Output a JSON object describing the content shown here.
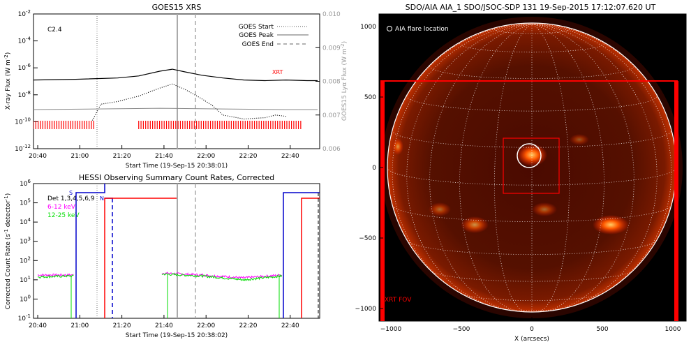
{
  "goes": {
    "title": "GOES15 XRS",
    "ylabel_left": "X-ray Flux (W m",
    "ylabel_left_sup": "-2",
    "ylabel_left_end": ")",
    "ylabel_right": "GOES15 Lyα Flux (W m",
    "ylabel_right_sup": "-2",
    "ylabel_right_end": ")",
    "xlabel": "Start Time (19-Sep-15 20:38:01)",
    "class_label": "C2.4",
    "xrt_label": "XRT",
    "legend": [
      {
        "label": "GOES Start",
        "style": "dotted"
      },
      {
        "label": "GOES Peak",
        "style": "solid"
      },
      {
        "label": "GOES End",
        "style": "dashed"
      }
    ],
    "left_ticks": [
      {
        "base": "10",
        "exp": "-2",
        "v": -2
      },
      {
        "base": "10",
        "exp": "-4",
        "v": -4
      },
      {
        "base": "10",
        "exp": "-6",
        "v": -6
      },
      {
        "base": "10",
        "exp": "-8",
        "v": -8
      },
      {
        "base": "10",
        "exp": "-10",
        "v": -10
      },
      {
        "base": "10",
        "exp": "-12",
        "v": -12
      }
    ],
    "right_ticks": [
      "0.010",
      "0.009",
      "0.008",
      "0.007",
      "0.006"
    ],
    "x_ticks": [
      "20:40",
      "21:00",
      "21:20",
      "21:40",
      "22:00",
      "22:20",
      "22:40"
    ]
  },
  "hessi": {
    "title": "HESSI Observing Summary Count Rates, Corrected",
    "ylabel": "Corrected Count Rate (s",
    "ylabel_sup": "-1",
    "ylabel_mid": " detector",
    "ylabel_sup2": "-1",
    "ylabel_end": ")",
    "xlabel": "Start Time (19-Sep-15 20:38:02)",
    "legend_det": "Det 1,3,4,5,6,9",
    "legend_6_12": "6-12 keV",
    "legend_12_25": "12-25 keV",
    "s_label": "S",
    "n_label": "N",
    "y_ticks": [
      {
        "base": "10",
        "exp": "6",
        "v": 6
      },
      {
        "base": "10",
        "exp": "5",
        "v": 5
      },
      {
        "base": "10",
        "exp": "4",
        "v": 4
      },
      {
        "base": "10",
        "exp": "3",
        "v": 3
      },
      {
        "base": "10",
        "exp": "2",
        "v": 2
      },
      {
        "base": "10",
        "exp": "1",
        "v": 1
      },
      {
        "base": "10",
        "exp": "0",
        "v": 0
      },
      {
        "base": "10",
        "exp": "-1",
        "v": -1
      }
    ],
    "x_ticks": [
      "20:40",
      "21:00",
      "21:20",
      "21:40",
      "22:00",
      "22:20",
      "22:40"
    ]
  },
  "aia": {
    "title": "SDO/AIA AIA_1 SDO/JSOC-SDP 131 19-Sep-2015 17:12:07.620 UT",
    "flare_legend": "AIA flare location",
    "xrt_fov": "XRT FOV",
    "xlabel": "X (arcsecs)",
    "x_ticks": [
      "−1000",
      "−500",
      "0",
      "500",
      "1000"
    ],
    "y_ticks": [
      "1000",
      "500",
      "0",
      "−500",
      "−1000"
    ]
  },
  "colors": {
    "goes_long": "#000000",
    "goes_short": "#000000",
    "lya": "#888888",
    "xrt_marks": "#ff0000",
    "det_blue": "#0000cc",
    "red": "#ff0000",
    "magenta": "#ff00ff",
    "green": "#00dd00",
    "grey_line": "#999999"
  },
  "chart_data": [
    {
      "type": "line",
      "title": "GOES15 XRS",
      "xlabel": "Start Time (19-Sep-15 20:38:01)",
      "ylabel": "X-ray Flux (W m-2)",
      "x_unit": "minutes after 20:38",
      "ylog": true,
      "ylim": [
        1e-12,
        0.01
      ],
      "y2lim": [
        0.006,
        0.01
      ],
      "series": [
        {
          "name": "GOES long",
          "x": [
            0,
            20,
            40,
            50,
            60,
            66,
            72,
            80,
            90,
            100,
            110,
            120,
            130,
            135
          ],
          "log_y": [
            -6.9,
            -6.85,
            -6.75,
            -6.6,
            -6.25,
            -6.1,
            -6.3,
            -6.55,
            -6.75,
            -6.9,
            -6.95,
            -6.9,
            -6.95,
            -6.95
          ]
        },
        {
          "name": "GOES short",
          "x": [
            28,
            32,
            40,
            50,
            60,
            66,
            72,
            80,
            85,
            90,
            100,
            110,
            115,
            120
          ],
          "log_y": [
            -9.9,
            -8.7,
            -8.5,
            -8.1,
            -7.5,
            -7.2,
            -7.6,
            -8.3,
            -8.8,
            -9.5,
            -9.8,
            -9.7,
            -9.5,
            -9.6
          ]
        },
        {
          "name": "Lya",
          "x": [
            0,
            30,
            60,
            90,
            120,
            135
          ],
          "log_y": [
            -9.1,
            -9.05,
            -9.0,
            -9.05,
            -9.1,
            -9.1
          ]
        }
      ],
      "goes_start_min": 30,
      "goes_peak_min": 68,
      "goes_end_min": 77
    },
    {
      "type": "line",
      "title": "HESSI Observing Summary Count Rates, Corrected",
      "xlabel": "Start Time (19-Sep-15 20:38:02)",
      "x_unit": "minutes after 20:38",
      "ylog": true,
      "ylim": [
        0.1,
        1000000.0
      ],
      "series": [
        {
          "name": "6-12 keV",
          "segments": [
            [
              [
                2,
                1.25
              ],
              [
                19,
                1.25
              ]
            ],
            [
              [
                61,
                1.35
              ],
              [
                80,
                1.25
              ],
              [
                100,
                1.1
              ],
              [
                118,
                1.25
              ]
            ]
          ]
        },
        {
          "name": "12-25 keV",
          "segments": [
            [
              [
                2,
                1.15
              ],
              [
                19,
                1.2
              ]
            ],
            [
              [
                61,
                1.3
              ],
              [
                80,
                1.2
              ],
              [
                100,
                1.0
              ],
              [
                118,
                1.2
              ]
            ]
          ]
        }
      ]
    }
  ]
}
